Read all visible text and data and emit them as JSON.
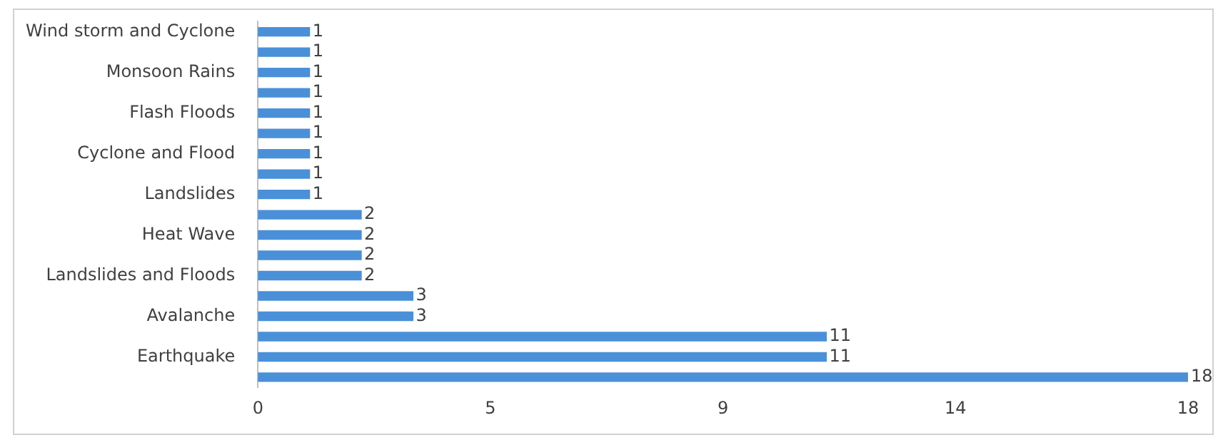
{
  "chart_data": {
    "type": "bar",
    "orientation": "horizontal",
    "categories": [
      "Wind storm and Cyclone",
      null,
      "Monsoon Rains",
      null,
      "Flash Floods",
      null,
      "Cyclone and Flood",
      null,
      "Landslides",
      null,
      "Heat Wave",
      null,
      "Landslides and Floods",
      null,
      "Avalanche",
      null,
      "Earthquake",
      null
    ],
    "values": [
      1,
      1,
      1,
      1,
      1,
      1,
      1,
      1,
      1,
      2,
      2,
      2,
      2,
      3,
      3,
      11,
      11,
      18
    ],
    "color": "#4a90d9",
    "xlim": [
      0,
      18
    ],
    "xticks": [
      0,
      {
        "value": 4.5,
        "label": "5"
      },
      9,
      {
        "value": 13.5,
        "label": "14"
      },
      18
    ],
    "data_labels": true,
    "grid": false,
    "legend": false
  }
}
